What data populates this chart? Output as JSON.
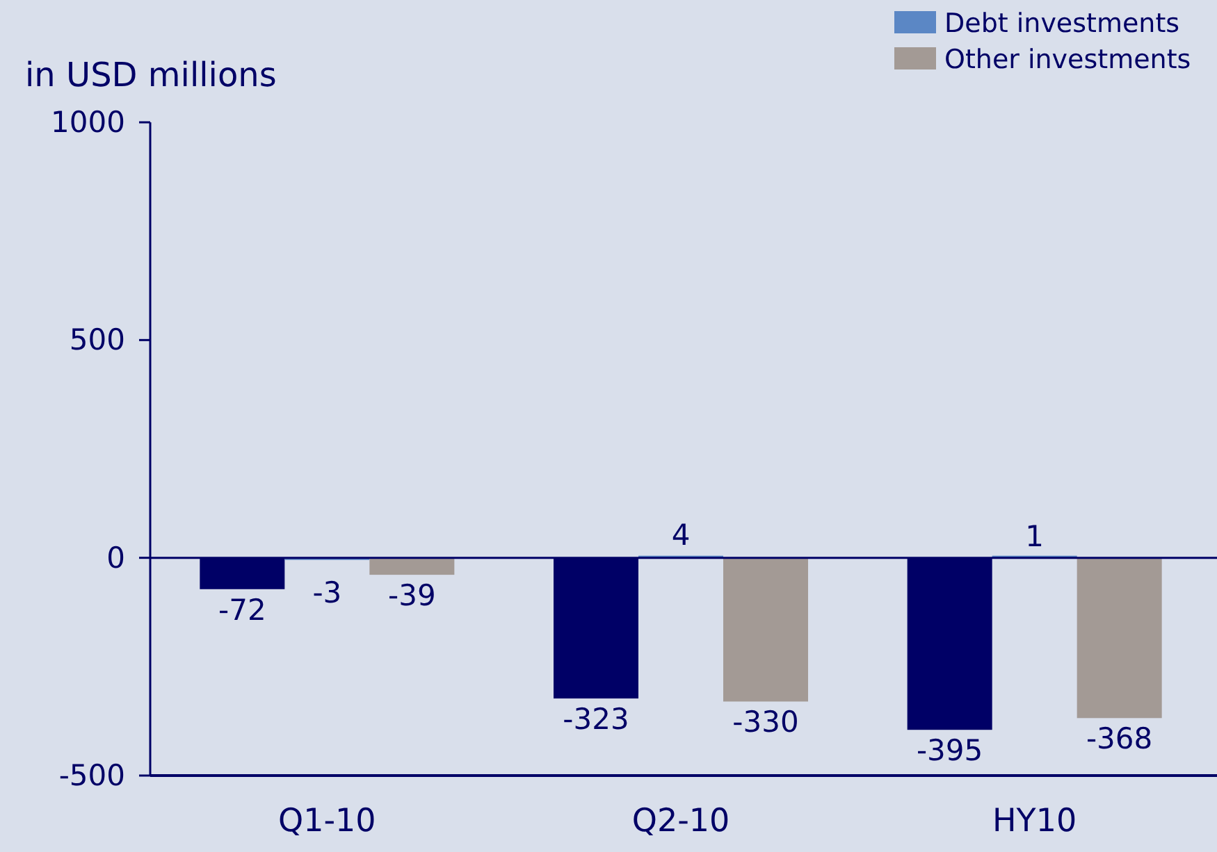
{
  "chart_data": {
    "type": "bar",
    "ylabel": "in USD millions",
    "categories": [
      "Q1-10",
      "Q2-10",
      "HY10"
    ],
    "series": [
      {
        "color": "#000066",
        "values": [
          -72,
          -323,
          -395
        ]
      },
      {
        "name": "Debt investments",
        "color": "#5b87c5",
        "values": [
          -3,
          4,
          1
        ]
      },
      {
        "name": "Other investments",
        "color": "#a39a95",
        "values": [
          -39,
          -330,
          -368
        ]
      }
    ],
    "ylim": [
      -500,
      1000
    ],
    "yticks": [
      -500,
      0,
      500,
      1000
    ],
    "ref_lines": [
      {
        "axis": "y",
        "value": 0,
        "color": "#000066"
      }
    ],
    "data_labels": true,
    "legend": "top right",
    "grid": false
  }
}
